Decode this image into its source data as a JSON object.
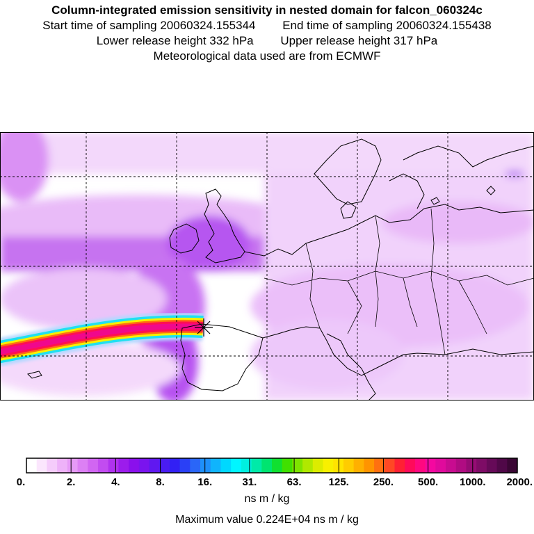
{
  "header": {
    "title": "Column-integrated emission sensitivity in nested domain for falcon_060324c",
    "start_label": "Start time of sampling 20060324.155344",
    "end_label": "End time of sampling 20060324.155438",
    "lower_label": "Lower release height  332 hPa",
    "upper_label": "Upper release height  317 hPa",
    "met_label": "Meteorological data used are from ECMWF"
  },
  "map": {
    "release_marker": "release-point",
    "colors": {
      "background": "#ffffff",
      "light_purple": "#e8b8f8",
      "mid_purple": "#b040f0",
      "coastline": "#000000"
    }
  },
  "legend": {
    "ticks": [
      "0.",
      "2.",
      "4.",
      "8.",
      "16.",
      "31.",
      "63.",
      "125.",
      "250.",
      "500.",
      "1000.",
      "2000."
    ],
    "colors": [
      "#ffffff",
      "#fbe6fd",
      "#f5ccfb",
      "#eeb2f9",
      "#e69af7",
      "#dc80f4",
      "#d166f2",
      "#c24cf0",
      "#b032ee",
      "#9c1cec",
      "#8a10ec",
      "#7a14ee",
      "#6018f0",
      "#4a1cf2",
      "#3220f4",
      "#2a40f6",
      "#2a66f8",
      "#1e90fa",
      "#10b4fc",
      "#00d8fe",
      "#00f6ff",
      "#00f0e0",
      "#00eaa8",
      "#00e470",
      "#10e030",
      "#40e000",
      "#7ee400",
      "#b0e800",
      "#dcec00",
      "#f8f000",
      "#ffe400",
      "#ffcc00",
      "#ffb000",
      "#ff9400",
      "#ff7010",
      "#ff4824",
      "#ff2034",
      "#ff0a5a",
      "#ff0880",
      "#f408a0",
      "#e00a9c",
      "#c80c90",
      "#b00c82",
      "#960c74",
      "#7e0c66",
      "#660a58",
      "#500848",
      "#3a0634"
    ],
    "unit": "ns m / kg",
    "maximum": "Maximum value  0.224E+04 ns m / kg"
  }
}
